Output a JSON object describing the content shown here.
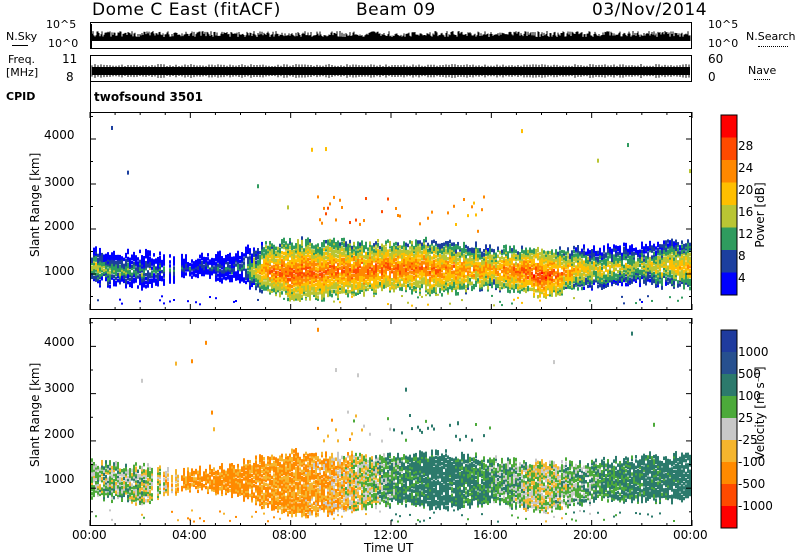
{
  "header": {
    "radar": "Dome C East (fitACF)",
    "beam": "Beam 09",
    "date": "03/Nov/2014"
  },
  "nsky_panel": {
    "left_label": "N.Sky",
    "right_label": "N.Search",
    "ticks": [
      "10^5",
      "10^0"
    ]
  },
  "freq_panel": {
    "left_label_1": "Freq.",
    "left_label_2": "[MHz]",
    "left_ticks": [
      "11",
      "8"
    ],
    "right_label": "Nave",
    "right_ticks": [
      "60",
      "0"
    ]
  },
  "cpid": {
    "label": "CPID",
    "value": "twofsound 3501"
  },
  "power_colorbar": {
    "label": "Power [dB]",
    "ticks": [
      "28",
      "24",
      "20",
      "16",
      "12",
      "8",
      "4"
    ],
    "colors": [
      "#ff0000",
      "#ff4a00",
      "#ff8800",
      "#ffbf00",
      "#b9c534",
      "#2f9b5e",
      "#1c3f9f",
      "#0000ff"
    ]
  },
  "velocity_colorbar": {
    "label": "Velocity [m s⁻¹]",
    "ticks": [
      "1000",
      "500",
      "100",
      "25",
      "-25",
      "-100",
      "-500",
      "-1000"
    ],
    "colors": [
      "#1f3b9e",
      "#27508f",
      "#2c7a6c",
      "#4caa3a",
      "#c8c8c8",
      "#f5b52e",
      "#ff8a00",
      "#ff4a00",
      "#ff0000"
    ]
  },
  "x_axis": {
    "ticks": [
      "00:00",
      "04:00",
      "08:00",
      "12:00",
      "16:00",
      "20:00",
      "00:00"
    ],
    "label": "Time UT"
  },
  "y_axis": {
    "label": "Slant Range [km]",
    "ticks": [
      "4000",
      "3000",
      "2000",
      "1000"
    ]
  },
  "chart_data": [
    {
      "type": "heatmap",
      "panel": "power",
      "xlabel": "Time UT",
      "ylabel": "Slant Range [km]",
      "xlim": [
        0,
        24
      ],
      "ylim": [
        200,
        4600
      ],
      "colorbar_label": "Power [dB]",
      "colorbar_range": [
        0,
        32
      ],
      "band_profile": {
        "hours": [
          0,
          2,
          4,
          6,
          7,
          8,
          10,
          12,
          14,
          16,
          18,
          20,
          22,
          24
        ],
        "lower_km": [
          800,
          700,
          950,
          800,
          600,
          400,
          500,
          650,
          550,
          700,
          500,
          700,
          750,
          700
        ],
        "upper_km": [
          1500,
          1400,
          1300,
          1450,
          1600,
          1700,
          1650,
          1650,
          1700,
          1550,
          1500,
          1500,
          1600,
          1700
        ],
        "peak_power_db": [
          18,
          14,
          10,
          12,
          26,
          28,
          27,
          28,
          26,
          24,
          30,
          20,
          18,
          24
        ]
      },
      "scatter_region_km": [
        1900,
        2700
      ],
      "scatter_region_hours": [
        9,
        16
      ]
    },
    {
      "type": "heatmap",
      "panel": "velocity",
      "xlabel": "Time UT",
      "ylabel": "Slant Range [km]",
      "xlim": [
        0,
        24
      ],
      "ylim": [
        200,
        4600
      ],
      "colorbar_label": "Velocity [m s⁻¹]",
      "colorbar_levels": [
        1000,
        500,
        100,
        25,
        -25,
        -100,
        -500,
        -1000
      ],
      "band_profile": {
        "hours": [
          0,
          2,
          4,
          6,
          7,
          8,
          10,
          12,
          14,
          16,
          18,
          20,
          22,
          24
        ],
        "lower_km": [
          800,
          700,
          950,
          800,
          600,
          400,
          500,
          650,
          550,
          700,
          500,
          700,
          750,
          700
        ],
        "upper_km": [
          1500,
          1400,
          1300,
          1450,
          1600,
          1700,
          1650,
          1650,
          1700,
          1550,
          1500,
          1500,
          1600,
          1700
        ],
        "dominant_velocity": [
          50,
          40,
          -150,
          -150,
          -120,
          -120,
          -60,
          80,
          200,
          100,
          0,
          80,
          150,
          200
        ]
      }
    },
    {
      "type": "line",
      "panel": "noise",
      "series": [
        {
          "name": "N.Sky",
          "level_fraction": 0.75
        },
        {
          "name": "N.Search",
          "level_fraction": 0.7
        }
      ]
    },
    {
      "type": "line",
      "panel": "frequency",
      "series": [
        {
          "name": "Freq.",
          "ylim_mhz": [
            8,
            11
          ],
          "level_mhz": 10.1
        },
        {
          "name": "Nave",
          "ylim": [
            0,
            60
          ]
        }
      ]
    }
  ]
}
